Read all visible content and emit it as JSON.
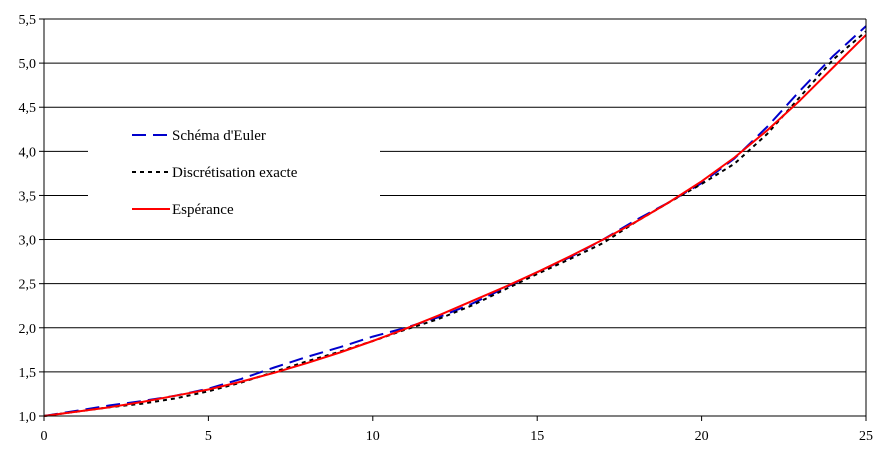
{
  "chart_data": {
    "type": "line",
    "title": "",
    "xlabel": "",
    "ylabel": "",
    "xlim": [
      0,
      25
    ],
    "ylim": [
      1.0,
      5.5
    ],
    "x_ticks": [
      0,
      5,
      10,
      15,
      20,
      25
    ],
    "x_tick_labels": [
      "0",
      "5",
      "10",
      "15",
      "20",
      "25"
    ],
    "y_ticks": [
      1.0,
      1.5,
      2.0,
      2.5,
      3.0,
      3.5,
      4.0,
      4.5,
      5.0,
      5.5
    ],
    "y_tick_labels": [
      "1,0",
      "1,5",
      "2,0",
      "2,5",
      "3,0",
      "3,5",
      "4,0",
      "4,5",
      "5,0",
      "5,5"
    ],
    "grid": "horizontal",
    "legend_position": "upper-left",
    "x": [
      0,
      1,
      2,
      3,
      4,
      5,
      6,
      7,
      8,
      9,
      10,
      11,
      12,
      13,
      14,
      15,
      16,
      17,
      18,
      19,
      20,
      21,
      22,
      23,
      24,
      25
    ],
    "series": [
      {
        "name": "Schéma d'Euler",
        "color": "#0000cc",
        "dash": "long-dash",
        "values": [
          1.0,
          1.06,
          1.12,
          1.17,
          1.23,
          1.31,
          1.42,
          1.55,
          1.67,
          1.78,
          1.9,
          2.0,
          2.12,
          2.27,
          2.45,
          2.63,
          2.8,
          3.0,
          3.22,
          3.42,
          3.64,
          3.92,
          4.28,
          4.69,
          5.08,
          5.42
        ]
      },
      {
        "name": "Discrétisation exacte",
        "color": "#000000",
        "dash": "dotted",
        "values": [
          1.0,
          1.05,
          1.1,
          1.14,
          1.2,
          1.28,
          1.38,
          1.5,
          1.62,
          1.73,
          1.85,
          1.98,
          2.1,
          2.25,
          2.43,
          2.61,
          2.78,
          2.96,
          3.2,
          3.42,
          3.63,
          3.86,
          4.2,
          4.62,
          5.04,
          5.36
        ]
      },
      {
        "name": "Espérance",
        "color": "#ff0000",
        "dash": "solid",
        "values": [
          1.0,
          1.05,
          1.1,
          1.16,
          1.23,
          1.3,
          1.39,
          1.49,
          1.6,
          1.72,
          1.85,
          1.99,
          2.14,
          2.3,
          2.46,
          2.63,
          2.81,
          3.0,
          3.2,
          3.42,
          3.66,
          3.93,
          4.24,
          4.58,
          4.95,
          5.32
        ]
      }
    ]
  }
}
